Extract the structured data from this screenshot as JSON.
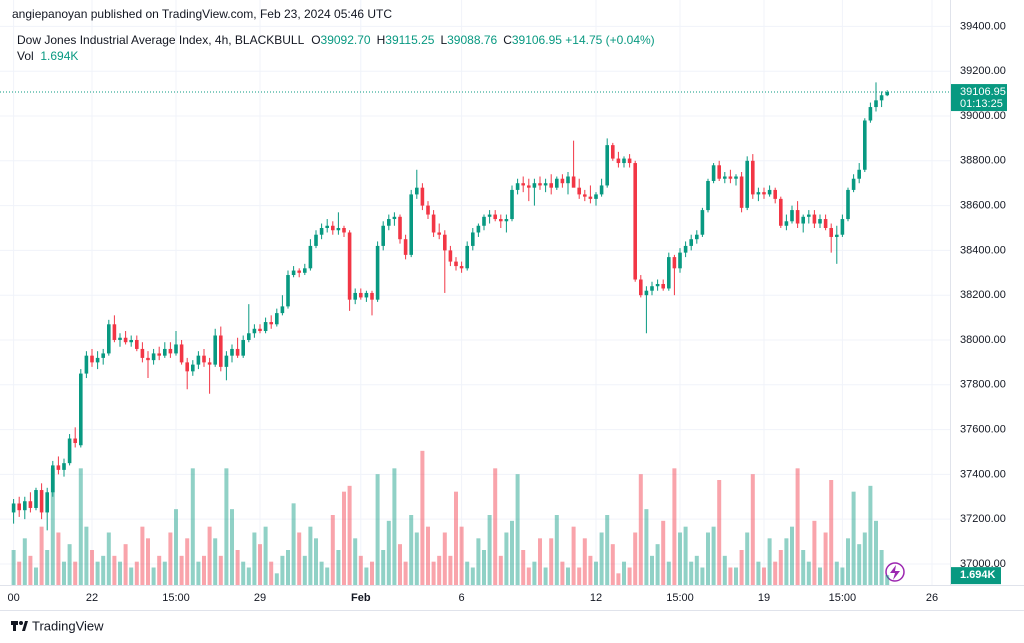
{
  "header": {
    "author": "angiepanoyan published on TradingView.com, Feb 23, 2024 05:46 UTC",
    "symbol": "Dow Jones Industrial Average Index, 4h, BLACKBULL",
    "ohlc": [
      {
        "key": "O",
        "value": "39092.70"
      },
      {
        "key": "H",
        "value": "39115.25"
      },
      {
        "key": "L",
        "value": "39088.76"
      },
      {
        "key": "C",
        "value": "39106.95"
      }
    ],
    "change": "+14.75 (+0.04%)",
    "volume_label": "Vol",
    "volume_value": "1.694K"
  },
  "price_scale": {
    "last_price": "39106.95",
    "countdown": "01:13:25",
    "last_volume": "1.694K"
  },
  "footer": {
    "brand": "TradingView"
  },
  "chart_data": {
    "type": "candlestick",
    "up_color": "#089981",
    "down_color": "#f23645",
    "grid": true,
    "ylim": [
      36906,
      39518
    ],
    "yticks": [
      {
        "value": 37000,
        "label": "37000.00"
      },
      {
        "value": 37200,
        "label": "37200.00"
      },
      {
        "value": 37400,
        "label": "37400.00"
      },
      {
        "value": 37600,
        "label": "37600.00"
      },
      {
        "value": 37800,
        "label": "37800.00"
      },
      {
        "value": 38000,
        "label": "38000.00"
      },
      {
        "value": 38200,
        "label": "38200.00"
      },
      {
        "value": 38400,
        "label": "38400.00"
      },
      {
        "value": 38600,
        "label": "38600.00"
      },
      {
        "value": 38800,
        "label": "38800.00"
      },
      {
        "value": 39000,
        "label": "39000.00"
      },
      {
        "value": 39200,
        "label": "39200.00"
      },
      {
        "value": 39400,
        "label": "39400.00"
      }
    ],
    "volume_ylim": [
      0,
      24
    ],
    "categories": [
      "00",
      null,
      null,
      null,
      null,
      null,
      null,
      null,
      null,
      null,
      null,
      null,
      null,
      null,
      "22",
      null,
      null,
      null,
      null,
      null,
      null,
      null,
      null,
      null,
      null,
      null,
      null,
      null,
      null,
      "15:00",
      null,
      null,
      null,
      null,
      null,
      null,
      null,
      null,
      null,
      null,
      null,
      null,
      null,
      null,
      "29",
      null,
      null,
      null,
      null,
      null,
      null,
      null,
      null,
      null,
      null,
      null,
      null,
      null,
      null,
      null,
      null,
      null,
      "Feb",
      null,
      null,
      null,
      null,
      null,
      null,
      null,
      null,
      null,
      null,
      null,
      null,
      null,
      null,
      null,
      null,
      null,
      "6",
      null,
      null,
      null,
      null,
      null,
      null,
      null,
      null,
      null,
      null,
      null,
      null,
      null,
      null,
      null,
      null,
      null,
      null,
      null,
      null,
      null,
      null,
      null,
      "12",
      null,
      null,
      null,
      null,
      null,
      null,
      null,
      null,
      null,
      null,
      null,
      null,
      null,
      null,
      "15:00",
      null,
      null,
      null,
      null,
      null,
      null,
      null,
      null,
      null,
      null,
      null,
      null,
      null,
      null,
      "19",
      null,
      null,
      null,
      null,
      null,
      null,
      null,
      null,
      null,
      null,
      null,
      null,
      null,
      "15:00",
      null,
      null,
      null,
      null,
      null,
      null,
      null,
      null,
      null,
      null,
      null,
      null,
      null,
      null,
      null,
      "26"
    ],
    "candles": [
      [
        37230,
        37290,
        37180,
        37270
      ],
      [
        37270,
        37300,
        37210,
        37240
      ],
      [
        37240,
        37300,
        37200,
        37280
      ],
      [
        37280,
        37320,
        37230,
        37250
      ],
      [
        37250,
        37340,
        37240,
        37330
      ],
      [
        37330,
        37360,
        37200,
        37230
      ],
      [
        37230,
        37340,
        37150,
        37320
      ],
      [
        37320,
        37460,
        37300,
        37440
      ],
      [
        37440,
        37480,
        37400,
        37420
      ],
      [
        37420,
        37470,
        37390,
        37450
      ],
      [
        37450,
        37580,
        37440,
        37560
      ],
      [
        37560,
        37610,
        37520,
        37540
      ],
      [
        37530,
        37870,
        37520,
        37850
      ],
      [
        37850,
        37950,
        37830,
        37930
      ],
      [
        37930,
        37960,
        37880,
        37900
      ],
      [
        37900,
        37950,
        37870,
        37920
      ],
      [
        37920,
        37960,
        37890,
        37940
      ],
      [
        37940,
        38090,
        37930,
        38070
      ],
      [
        38070,
        38110,
        37990,
        38000
      ],
      [
        38000,
        38030,
        37970,
        38010
      ],
      [
        38010,
        38040,
        37980,
        37990
      ],
      [
        37990,
        38020,
        37970,
        38000
      ],
      [
        38000,
        38020,
        37950,
        37960
      ],
      [
        37960,
        37990,
        37900,
        37920
      ],
      [
        37920,
        37950,
        37830,
        37910
      ],
      [
        37910,
        37960,
        37890,
        37940
      ],
      [
        37940,
        37970,
        37910,
        37930
      ],
      [
        37930,
        37990,
        37920,
        37960
      ],
      [
        37960,
        37990,
        37920,
        37940
      ],
      [
        37940,
        38040,
        37930,
        37980
      ],
      [
        37980,
        38000,
        37890,
        37900
      ],
      [
        37900,
        37920,
        37780,
        37860
      ],
      [
        37860,
        37910,
        37840,
        37890
      ],
      [
        37890,
        37950,
        37870,
        37930
      ],
      [
        37930,
        37960,
        37880,
        37900
      ],
      [
        37900,
        37920,
        37760,
        37890
      ],
      [
        37890,
        38050,
        37880,
        38020
      ],
      [
        38020,
        38060,
        37860,
        37880
      ],
      [
        37880,
        37950,
        37820,
        37930
      ],
      [
        37930,
        37980,
        37900,
        37960
      ],
      [
        37960,
        38010,
        37920,
        37930
      ],
      [
        37930,
        38020,
        37920,
        38000
      ],
      [
        38000,
        38160,
        37990,
        38030
      ],
      [
        38030,
        38070,
        38010,
        38050
      ],
      [
        38050,
        38070,
        38030,
        38040
      ],
      [
        38040,
        38100,
        38030,
        38080
      ],
      [
        38080,
        38110,
        38050,
        38070
      ],
      [
        38070,
        38140,
        38060,
        38120
      ],
      [
        38120,
        38200,
        38110,
        38150
      ],
      [
        38150,
        38310,
        38140,
        38290
      ],
      [
        38290,
        38330,
        38280,
        38310
      ],
      [
        38310,
        38320,
        38280,
        38300
      ],
      [
        38300,
        38340,
        38290,
        38320
      ],
      [
        38320,
        38450,
        38310,
        38420
      ],
      [
        38420,
        38490,
        38410,
        38470
      ],
      [
        38470,
        38520,
        38450,
        38500
      ],
      [
        38500,
        38540,
        38480,
        38510
      ],
      [
        38510,
        38530,
        38470,
        38490
      ],
      [
        38490,
        38570,
        38470,
        38500
      ],
      [
        38500,
        38510,
        38460,
        38480
      ],
      [
        38480,
        38490,
        38130,
        38180
      ],
      [
        38180,
        38230,
        38160,
        38210
      ],
      [
        38210,
        38230,
        38180,
        38190
      ],
      [
        38190,
        38220,
        38170,
        38210
      ],
      [
        38210,
        38220,
        38110,
        38180
      ],
      [
        38180,
        38440,
        38170,
        38420
      ],
      [
        38420,
        38530,
        38400,
        38510
      ],
      [
        38510,
        38560,
        38490,
        38540
      ],
      [
        38540,
        38570,
        38510,
        38550
      ],
      [
        38550,
        38560,
        38430,
        38450
      ],
      [
        38450,
        38470,
        38360,
        38380
      ],
      [
        38380,
        38670,
        38370,
        38650
      ],
      [
        38650,
        38760,
        38630,
        38680
      ],
      [
        38680,
        38700,
        38580,
        38600
      ],
      [
        38600,
        38620,
        38540,
        38560
      ],
      [
        38560,
        38580,
        38460,
        38480
      ],
      [
        38480,
        38520,
        38450,
        38470
      ],
      [
        38470,
        38490,
        38210,
        38400
      ],
      [
        38400,
        38420,
        38330,
        38350
      ],
      [
        38350,
        38370,
        38310,
        38330
      ],
      [
        38330,
        38350,
        38300,
        38320
      ],
      [
        38320,
        38440,
        38310,
        38420
      ],
      [
        38420,
        38500,
        38400,
        38480
      ],
      [
        38480,
        38520,
        38460,
        38510
      ],
      [
        38510,
        38560,
        38490,
        38550
      ],
      [
        38550,
        38580,
        38520,
        38560
      ],
      [
        38560,
        38580,
        38530,
        38540
      ],
      [
        38540,
        38560,
        38500,
        38530
      ],
      [
        38530,
        38560,
        38480,
        38540
      ],
      [
        38540,
        38690,
        38530,
        38670
      ],
      [
        38670,
        38720,
        38650,
        38700
      ],
      [
        38700,
        38730,
        38660,
        38690
      ],
      [
        38690,
        38720,
        38620,
        38680
      ],
      [
        38680,
        38720,
        38600,
        38700
      ],
      [
        38700,
        38730,
        38670,
        38690
      ],
      [
        38690,
        38720,
        38660,
        38700
      ],
      [
        38700,
        38740,
        38650,
        38680
      ],
      [
        38680,
        38730,
        38670,
        38720
      ],
      [
        38720,
        38740,
        38680,
        38700
      ],
      [
        38700,
        38750,
        38650,
        38730
      ],
      [
        38730,
        38890,
        38710,
        38680
      ],
      [
        38680,
        38720,
        38630,
        38650
      ],
      [
        38650,
        38670,
        38620,
        38640
      ],
      [
        38640,
        38690,
        38610,
        38630
      ],
      [
        38630,
        38660,
        38600,
        38650
      ],
      [
        38650,
        38720,
        38640,
        38690
      ],
      [
        38690,
        38900,
        38680,
        38870
      ],
      [
        38870,
        38880,
        38800,
        38810
      ],
      [
        38810,
        38840,
        38770,
        38790
      ],
      [
        38790,
        38820,
        38770,
        38810
      ],
      [
        38810,
        38830,
        38770,
        38790
      ],
      [
        38790,
        38800,
        38260,
        38270
      ],
      [
        38270,
        38290,
        38190,
        38200
      ],
      [
        38200,
        38240,
        38030,
        38220
      ],
      [
        38220,
        38260,
        38200,
        38240
      ],
      [
        38240,
        38270,
        38220,
        38250
      ],
      [
        38250,
        38270,
        38220,
        38230
      ],
      [
        38230,
        38390,
        38220,
        38370
      ],
      [
        38370,
        38380,
        38200,
        38320
      ],
      [
        38320,
        38410,
        38300,
        38390
      ],
      [
        38390,
        38440,
        38370,
        38420
      ],
      [
        38420,
        38470,
        38400,
        38450
      ],
      [
        38450,
        38490,
        38430,
        38470
      ],
      [
        38470,
        38590,
        38460,
        38580
      ],
      [
        38580,
        38720,
        38570,
        38710
      ],
      [
        38710,
        38790,
        38700,
        38780
      ],
      [
        38780,
        38800,
        38710,
        38720
      ],
      [
        38720,
        38750,
        38700,
        38730
      ],
      [
        38730,
        38760,
        38700,
        38720
      ],
      [
        38720,
        38740,
        38690,
        38730
      ],
      [
        38730,
        38750,
        38570,
        38590
      ],
      [
        38590,
        38820,
        38580,
        38800
      ],
      [
        38800,
        38830,
        38630,
        38650
      ],
      [
        38650,
        38680,
        38620,
        38660
      ],
      [
        38660,
        38680,
        38630,
        38650
      ],
      [
        38650,
        38690,
        38640,
        38670
      ],
      [
        38670,
        38680,
        38610,
        38630
      ],
      [
        38630,
        38640,
        38500,
        38510
      ],
      [
        38510,
        38560,
        38490,
        38530
      ],
      [
        38530,
        38600,
        38520,
        38580
      ],
      [
        38580,
        38620,
        38500,
        38520
      ],
      [
        38520,
        38560,
        38480,
        38550
      ],
      [
        38550,
        38580,
        38520,
        38560
      ],
      [
        38560,
        38580,
        38500,
        38520
      ],
      [
        38520,
        38560,
        38500,
        38540
      ],
      [
        38540,
        38560,
        38490,
        38500
      ],
      [
        38500,
        38520,
        38390,
        38460
      ],
      [
        38460,
        38510,
        38340,
        38470
      ],
      [
        38470,
        38560,
        38460,
        38540
      ],
      [
        38540,
        38680,
        38530,
        38670
      ],
      [
        38670,
        38740,
        38660,
        38720
      ],
      [
        38720,
        38790,
        38700,
        38760
      ],
      [
        38760,
        38990,
        38750,
        38980
      ],
      [
        38980,
        39060,
        38970,
        39040
      ],
      [
        39040,
        39150,
        39020,
        39070
      ],
      [
        39070,
        39110,
        39040,
        39092.7
      ],
      [
        39092.7,
        39115.25,
        39088.76,
        39106.95
      ],
      null,
      null,
      null,
      null,
      null,
      null,
      null,
      null
    ],
    "volume": [
      6,
      4,
      8,
      5,
      3,
      10,
      6,
      20,
      9,
      4,
      7,
      4,
      20,
      10,
      6,
      4,
      5,
      9,
      5,
      4,
      7,
      3,
      4,
      10,
      8,
      3,
      5,
      4,
      9,
      13,
      5,
      8,
      20,
      4,
      5,
      10,
      8,
      5,
      20,
      13,
      6,
      4,
      3,
      9,
      7,
      10,
      4,
      2,
      5,
      6,
      14,
      9,
      5,
      10,
      8,
      4,
      3,
      12,
      6,
      16,
      17,
      8,
      5,
      3,
      4,
      19,
      6,
      11,
      20,
      7,
      4,
      12,
      9,
      23,
      10,
      4,
      5,
      9,
      5,
      16,
      10,
      4,
      3,
      8,
      6,
      12,
      20,
      5,
      9,
      11,
      19,
      6,
      3,
      4,
      8,
      3,
      8,
      12,
      4,
      3,
      10,
      3,
      8,
      5,
      4,
      9,
      12,
      7,
      2,
      4,
      3,
      9,
      19,
      13,
      5,
      7,
      11,
      4,
      20,
      9,
      10,
      4,
      5,
      3,
      9,
      10,
      18,
      5,
      3,
      3,
      6,
      9,
      19,
      4,
      3,
      8,
      4,
      6,
      8,
      10,
      20,
      6,
      4,
      11,
      3,
      9,
      18,
      4,
      3,
      8,
      16,
      7,
      9,
      17,
      11,
      6,
      1.694,
      null,
      null,
      null,
      null,
      null,
      null,
      null,
      null
    ]
  }
}
